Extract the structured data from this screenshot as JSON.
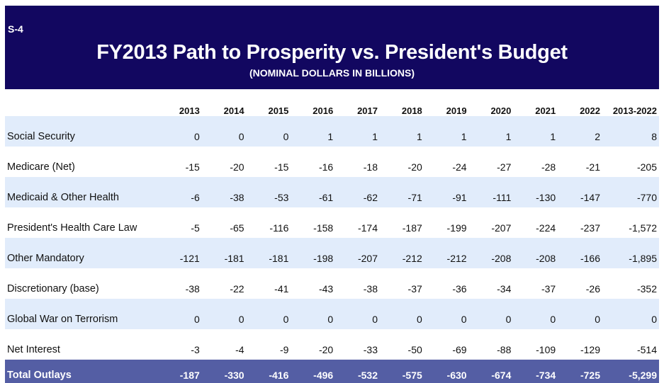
{
  "header": {
    "slide_id": "S-4",
    "title": "FY2013 Path to Prosperity vs. President's Budget",
    "subtitle": "(NOMINAL DOLLARS IN BILLIONS)"
  },
  "table": {
    "columns": [
      "",
      "2013",
      "2014",
      "2015",
      "2016",
      "2017",
      "2018",
      "2019",
      "2020",
      "2021",
      "2022",
      "2013-2022"
    ],
    "rows": [
      {
        "label": "Social Security",
        "values": [
          "0",
          "0",
          "0",
          "1",
          "1",
          "1",
          "1",
          "1",
          "1",
          "2",
          "8"
        ]
      },
      {
        "label": "Medicare (Net)",
        "values": [
          "-15",
          "-20",
          "-15",
          "-16",
          "-18",
          "-20",
          "-24",
          "-27",
          "-28",
          "-21",
          "-205"
        ]
      },
      {
        "label": "Medicaid & Other Health",
        "values": [
          "-6",
          "-38",
          "-53",
          "-61",
          "-62",
          "-71",
          "-91",
          "-111",
          "-130",
          "-147",
          "-770"
        ]
      },
      {
        "label": "President's Health Care Law",
        "values": [
          "-5",
          "-65",
          "-116",
          "-158",
          "-174",
          "-187",
          "-199",
          "-207",
          "-224",
          "-237",
          "-1,572"
        ]
      },
      {
        "label": "Other Mandatory",
        "values": [
          "-121",
          "-181",
          "-181",
          "-198",
          "-207",
          "-212",
          "-212",
          "-208",
          "-208",
          "-166",
          "-1,895"
        ]
      },
      {
        "label": "Discretionary (base)",
        "values": [
          "-38",
          "-22",
          "-41",
          "-43",
          "-38",
          "-37",
          "-36",
          "-34",
          "-37",
          "-26",
          "-352"
        ]
      },
      {
        "label": "Global War on Terrorism",
        "values": [
          "0",
          "0",
          "0",
          "0",
          "0",
          "0",
          "0",
          "0",
          "0",
          "0",
          "0"
        ]
      },
      {
        "label": "Net Interest",
        "values": [
          "-3",
          "-4",
          "-9",
          "-20",
          "-33",
          "-50",
          "-69",
          "-88",
          "-109",
          "-129",
          "-514"
        ]
      }
    ],
    "total": {
      "label": "Total Outlays",
      "values": [
        "-187",
        "-330",
        "-416",
        "-496",
        "-532",
        "-575",
        "-630",
        "-674",
        "-734",
        "-725",
        "-5,299"
      ]
    }
  },
  "colors": {
    "banner": "#120760",
    "row_shade": "#e1ecfb",
    "total_row": "#545ea4"
  }
}
